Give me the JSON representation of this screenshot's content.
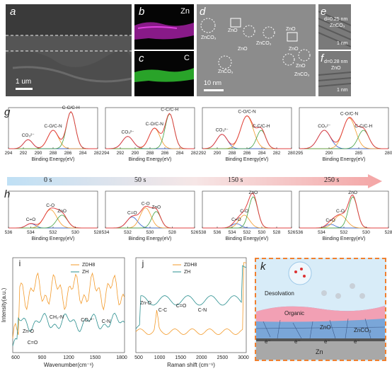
{
  "panels": {
    "a": {
      "label": "a",
      "scalebar": "1 um"
    },
    "b": {
      "label": "b",
      "element": "Zn"
    },
    "c": {
      "label": "c",
      "element": "C"
    },
    "d": {
      "label": "d",
      "scalebar": "10 nm",
      "annotations": [
        "ZnCO₃",
        "ZnO",
        "ZnO",
        "ZnCO₃",
        "ZnO",
        "ZnO",
        "ZnCO₃",
        "ZnCO₃",
        "ZnO"
      ]
    },
    "e": {
      "label": "e",
      "spacing": "d=0.25 nm",
      "phase": "ZnCO₃",
      "scalebar": "1 nm"
    },
    "f": {
      "label": "f",
      "spacing": "d=0.28 nm",
      "phase": "ZnO",
      "scalebar": "1 nm"
    },
    "g": {
      "label": "g"
    },
    "h": {
      "label": "h"
    },
    "i": {
      "label": "i"
    },
    "j": {
      "label": "j"
    },
    "k": {
      "label": "k"
    }
  },
  "xps_c1s": [
    {
      "peaks": [
        "CO₃²⁻",
        "C-O/C-N",
        "C-C/C-H"
      ],
      "ticks": [
        "294",
        "292",
        "290",
        "288",
        "286",
        "284",
        "282"
      ],
      "xlabel": "Binding Energy(eV)"
    },
    {
      "peaks": [
        "CO₃²⁻",
        "C-O/C-N",
        "C-C/C-H"
      ],
      "ticks": [
        "294",
        "292",
        "290",
        "288",
        "286",
        "284",
        "282"
      ],
      "xlabel": "Binding Energy(eV)"
    },
    {
      "peaks": [
        "CO₃²⁻",
        "C-O/C-N",
        "C-C/C-H"
      ],
      "ticks": [
        "292",
        "290",
        "288",
        "286",
        "284",
        "282",
        "280"
      ],
      "xlabel": "Binding Energy(eV)"
    },
    {
      "peaks": [
        "CO₃²⁻",
        "C-O/C-N",
        "C-C/C-H"
      ],
      "ticks": [
        "295",
        "290",
        "285",
        "280"
      ],
      "xlabel": "Binding Energy(eV)"
    }
  ],
  "timeline": [
    "0 s",
    "50 s",
    "150 s",
    "250 s"
  ],
  "xps_o1s": [
    {
      "peaks": [
        "C=O",
        "C-O",
        "ZnO"
      ],
      "ticks": [
        "536",
        "534",
        "532",
        "530",
        "528"
      ],
      "xlabel": "Binding Energy(eV)"
    },
    {
      "peaks": [
        "C=O",
        "C-O",
        "ZnO"
      ],
      "ticks": [
        "534",
        "532",
        "530",
        "528",
        "526"
      ],
      "xlabel": "Binding Energy(eV)"
    },
    {
      "peaks": [
        "C=O",
        "C-O",
        "ZnO"
      ],
      "ticks": [
        "538",
        "536",
        "534",
        "532",
        "530",
        "528",
        "526"
      ],
      "xlabel": "Binding Energy(eV)"
    },
    {
      "peaks": [
        "C=O",
        "C-O",
        "ZnO"
      ],
      "ticks": [
        "536",
        "534",
        "532",
        "530",
        "528"
      ],
      "xlabel": "Binding Energy(eV)"
    }
  ],
  "ir": {
    "ylabel": "Intensity(a.u.)",
    "xlabel": "Wavenumber(cm⁻¹)",
    "xticks": [
      "600",
      "900",
      "1200",
      "1500",
      "1800"
    ],
    "legend": [
      "ZDH8",
      "ZH"
    ],
    "annotations": [
      "Zn-O",
      "C=O",
      "CH₂-N",
      "CO₃²⁻",
      "C-N"
    ]
  },
  "raman": {
    "xlabel": "Raman shift (cm⁻¹)",
    "xticks": [
      "500",
      "1000",
      "1500",
      "2000",
      "2500",
      "3000"
    ],
    "legend": [
      "ZDH8",
      "ZH"
    ],
    "annotations": [
      "Zn-O",
      "C-C",
      "C=O",
      "C-N"
    ]
  },
  "scheme": {
    "labels": [
      "Desolvation",
      "Organic",
      "ZnO",
      "ZnCO₃",
      "Zn",
      "e⁻",
      "e⁻",
      "e⁻",
      "e⁻"
    ]
  },
  "colors": {
    "orange": "#f39a2a",
    "teal": "#2a8f8f",
    "red": "#e04040",
    "blue": "#3060d0",
    "green": "#40a040",
    "arrow_start": "#bfe0f5",
    "arrow_end": "#f4a5a5"
  }
}
